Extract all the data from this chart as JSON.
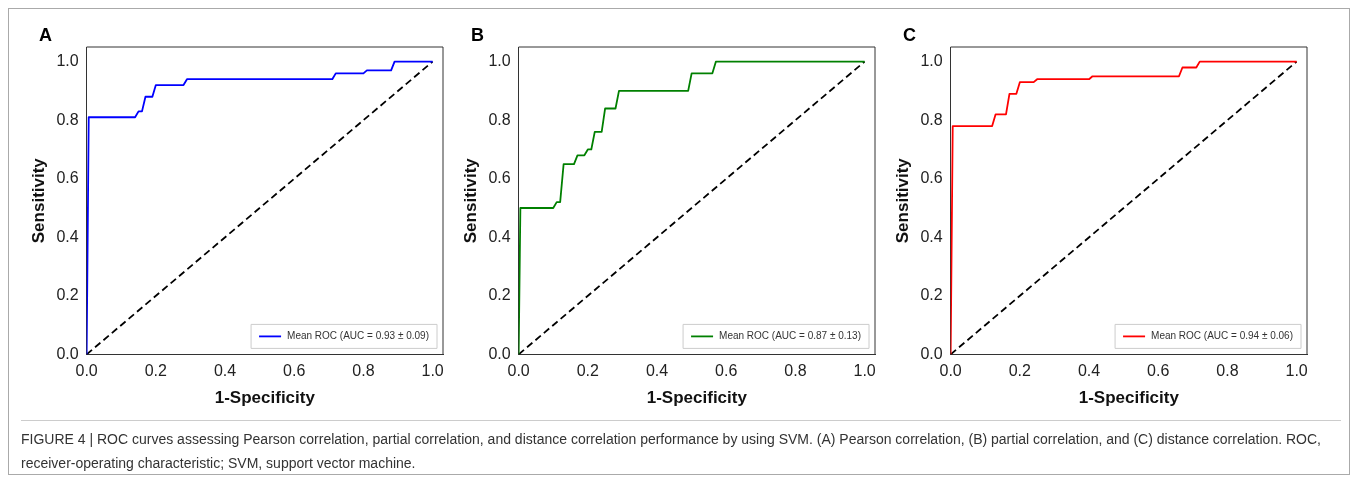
{
  "chart_data": [
    {
      "type": "line",
      "xlabel": "1-Specificity",
      "ylabel": "Sensitivity",
      "annotations": [
        "A",
        "FIGURE 4 | ROC curves assessing Pearson correlation, partial correlation, and distance correlation performance by using SVM. (A) Pearson correlation, (B) partial correlation, and (C) distance correlation. ROC, receiver-operating characteristic; SVM, support vector machine."
      ],
      "xlim": [
        0,
        1.03
      ],
      "ylim": [
        0,
        1.05
      ],
      "xticks": [
        {
          "value": 0,
          "label": "0.0"
        },
        {
          "value": 0.2,
          "label": "0.2"
        },
        {
          "value": 0.4,
          "label": "0.4"
        },
        {
          "value": 0.6,
          "label": "0.6"
        },
        {
          "value": 0.8,
          "label": "0.8"
        },
        {
          "value": 1,
          "label": "1.0"
        }
      ],
      "yticks": [
        {
          "value": 0,
          "label": "0.0"
        },
        {
          "value": 0.2,
          "label": "0.2"
        },
        {
          "value": 0.4,
          "label": "0.4"
        },
        {
          "value": 0.6,
          "label": "0.6"
        },
        {
          "value": 0.8,
          "label": "0.8"
        },
        {
          "value": 1,
          "label": "1.0"
        }
      ],
      "grid": false,
      "legend": "bottom right",
      "marker": "none",
      "series": [
        {
          "name": "Mean ROC (AUC = 0.93 ± 0.09)",
          "color": "#0000ff",
          "x": [
            0,
            0.006,
            0.14,
            0.15,
            0.16,
            0.17,
            0.19,
            0.2,
            0.28,
            0.29,
            0.71,
            0.72,
            0.8,
            0.81,
            0.88,
            0.89,
            1
          ],
          "values": [
            0,
            0.81,
            0.81,
            0.83,
            0.83,
            0.88,
            0.88,
            0.92,
            0.92,
            0.94,
            0.94,
            0.96,
            0.96,
            0.97,
            0.97,
            1,
            1
          ]
        },
        {
          "color": "#000000",
          "line_style": "dashed",
          "x": [
            0,
            1
          ],
          "values": [
            0,
            1
          ]
        }
      ]
    },
    {
      "type": "line",
      "xlabel": "1-Specificity",
      "ylabel": "Sensitivity",
      "annotations": [
        "B"
      ],
      "xlim": [
        0,
        1.03
      ],
      "ylim": [
        0,
        1.05
      ],
      "xticks": [
        {
          "value": 0,
          "label": "0.0"
        },
        {
          "value": 0.2,
          "label": "0.2"
        },
        {
          "value": 0.4,
          "label": "0.4"
        },
        {
          "value": 0.6,
          "label": "0.6"
        },
        {
          "value": 0.8,
          "label": "0.8"
        },
        {
          "value": 1,
          "label": "1.0"
        }
      ],
      "yticks": [
        {
          "value": 0,
          "label": "0.0"
        },
        {
          "value": 0.2,
          "label": "0.2"
        },
        {
          "value": 0.4,
          "label": "0.4"
        },
        {
          "value": 0.6,
          "label": "0.6"
        },
        {
          "value": 0.8,
          "label": "0.8"
        },
        {
          "value": 1,
          "label": "1.0"
        }
      ],
      "grid": false,
      "legend": "bottom right",
      "marker": "none",
      "series": [
        {
          "name": "Mean ROC (AUC = 0.87 ± 0.13)",
          "color": "#008000",
          "x": [
            0,
            0.005,
            0.1,
            0.11,
            0.12,
            0.13,
            0.16,
            0.17,
            0.19,
            0.2,
            0.21,
            0.22,
            0.24,
            0.25,
            0.28,
            0.29,
            0.49,
            0.5,
            0.56,
            0.57,
            1
          ],
          "values": [
            0,
            0.5,
            0.5,
            0.52,
            0.52,
            0.65,
            0.65,
            0.68,
            0.68,
            0.7,
            0.7,
            0.76,
            0.76,
            0.84,
            0.84,
            0.9,
            0.9,
            0.96,
            0.96,
            1,
            1
          ]
        },
        {
          "color": "#000000",
          "line_style": "dashed",
          "x": [
            0,
            1
          ],
          "values": [
            0,
            1
          ]
        }
      ]
    },
    {
      "type": "line",
      "xlabel": "1-Specificity",
      "ylabel": "Sensitivity",
      "annotations": [
        "C"
      ],
      "xlim": [
        0,
        1.03
      ],
      "ylim": [
        0,
        1.05
      ],
      "xticks": [
        {
          "value": 0,
          "label": "0.0"
        },
        {
          "value": 0.2,
          "label": "0.2"
        },
        {
          "value": 0.4,
          "label": "0.4"
        },
        {
          "value": 0.6,
          "label": "0.6"
        },
        {
          "value": 0.8,
          "label": "0.8"
        },
        {
          "value": 1,
          "label": "1.0"
        }
      ],
      "yticks": [
        {
          "value": 0,
          "label": "0.0"
        },
        {
          "value": 0.2,
          "label": "0.2"
        },
        {
          "value": 0.4,
          "label": "0.4"
        },
        {
          "value": 0.6,
          "label": "0.6"
        },
        {
          "value": 0.8,
          "label": "0.8"
        },
        {
          "value": 1,
          "label": "1.0"
        }
      ],
      "grid": false,
      "legend": "bottom right",
      "marker": "none",
      "series": [
        {
          "name": "Mean ROC (AUC = 0.94 ± 0.06)",
          "color": "#ff0000",
          "x": [
            0,
            0.006,
            0.12,
            0.13,
            0.16,
            0.17,
            0.19,
            0.2,
            0.24,
            0.25,
            0.4,
            0.41,
            0.66,
            0.67,
            0.71,
            0.72,
            1
          ],
          "values": [
            0,
            0.78,
            0.78,
            0.82,
            0.82,
            0.89,
            0.89,
            0.93,
            0.93,
            0.94,
            0.94,
            0.95,
            0.95,
            0.98,
            0.98,
            1,
            1
          ]
        },
        {
          "color": "#000000",
          "line_style": "dashed",
          "x": [
            0,
            1
          ],
          "values": [
            0,
            1
          ]
        }
      ]
    }
  ]
}
